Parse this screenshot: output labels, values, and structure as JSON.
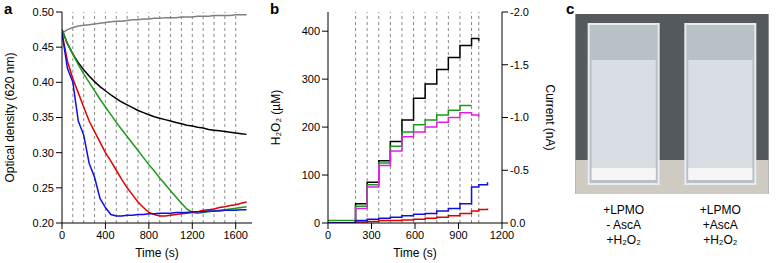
{
  "chart_data": [
    {
      "type": "line",
      "title": "a",
      "x_label": "Time (s)",
      "y_label": "Optical density (620 nm)",
      "x": [
        0,
        50,
        100,
        150,
        200,
        250,
        300,
        350,
        400,
        450,
        500,
        550,
        600,
        650,
        700,
        750,
        800,
        850,
        900,
        950,
        1000,
        1050,
        1100,
        1150,
        1200,
        1250,
        1300,
        1350,
        1400,
        1450,
        1500,
        1550,
        1600,
        1650,
        1700
      ],
      "xlim": [
        0,
        1750
      ],
      "xticks": [
        0,
        400,
        800,
        1200,
        1600
      ],
      "ylim": [
        0.2,
        0.5
      ],
      "yticks": [
        {
          "value": 0.2,
          "label": "0.20"
        },
        0.25,
        {
          "value": 0.3,
          "label": "0.30"
        },
        0.35,
        {
          "value": 0.4,
          "label": "0.40"
        },
        0.45,
        {
          "value": 0.5,
          "label": "0.50"
        }
      ],
      "vlines": [
        100,
        200,
        300,
        400,
        500,
        600,
        700,
        800,
        900,
        1000,
        1100,
        1200,
        1300,
        1400,
        1500,
        1600
      ],
      "series": [
        {
          "color": "#808080",
          "values": [
            0.47,
            0.475,
            0.478,
            0.48,
            0.481,
            0.482,
            0.483,
            0.484,
            0.485,
            0.486,
            0.487,
            0.487,
            0.488,
            0.489,
            0.489,
            0.49,
            0.49,
            0.491,
            0.491,
            0.492,
            0.492,
            0.492,
            0.493,
            0.493,
            0.493,
            0.494,
            0.494,
            0.494,
            0.495,
            0.495,
            0.495,
            0.495,
            0.496,
            0.496,
            0.496
          ]
        },
        {
          "color": "#000000",
          "values": [
            0.475,
            0.455,
            0.44,
            0.428,
            0.418,
            0.409,
            0.401,
            0.394,
            0.388,
            0.382,
            0.377,
            0.372,
            0.368,
            0.364,
            0.36,
            0.357,
            0.354,
            0.351,
            0.349,
            0.347,
            0.345,
            0.343,
            0.341,
            0.339,
            0.338,
            0.336,
            0.335,
            0.333,
            0.332,
            0.331,
            0.33,
            0.329,
            0.328,
            0.327,
            0.326
          ]
        },
        {
          "color": "#1a9a1a",
          "values": [
            0.475,
            0.455,
            0.44,
            0.425,
            0.412,
            0.4,
            0.388,
            0.376,
            0.365,
            0.354,
            0.343,
            0.333,
            0.323,
            0.313,
            0.303,
            0.293,
            0.283,
            0.274,
            0.264,
            0.255,
            0.246,
            0.237,
            0.228,
            0.22,
            0.215,
            0.214,
            0.215,
            0.216,
            0.217,
            0.218,
            0.219,
            0.22,
            0.221,
            0.222,
            0.223
          ]
        },
        {
          "color": "#e00000",
          "values": [
            0.47,
            0.43,
            0.405,
            0.385,
            0.365,
            0.345,
            0.33,
            0.315,
            0.3,
            0.288,
            0.275,
            0.262,
            0.25,
            0.24,
            0.23,
            0.222,
            0.215,
            0.212,
            0.21,
            0.21,
            0.211,
            0.212,
            0.213,
            0.214,
            0.215,
            0.216,
            0.218,
            0.219,
            0.22,
            0.222,
            0.223,
            0.225,
            0.226,
            0.228,
            0.23
          ]
        },
        {
          "color": "#1010e0",
          "values": [
            0.47,
            0.42,
            0.4,
            0.345,
            0.325,
            0.285,
            0.265,
            0.235,
            0.222,
            0.212,
            0.21,
            0.21,
            0.211,
            0.211,
            0.212,
            0.212,
            0.213,
            0.213,
            0.214,
            0.214,
            0.214,
            0.215,
            0.215,
            0.215,
            0.216,
            0.216,
            0.216,
            0.217,
            0.217,
            0.217,
            0.218,
            0.218,
            0.218,
            0.219,
            0.219
          ]
        }
      ]
    },
    {
      "type": "line",
      "title": "b",
      "x_label": "Time (s)",
      "y_label": "H₂O₂ (µM)",
      "y2_label": "Current (nA)",
      "x": [
        0,
        190,
        270,
        350,
        430,
        510,
        590,
        670,
        750,
        830,
        910,
        990,
        1040,
        1100
      ],
      "xlim": [
        0,
        1200
      ],
      "xticks": [
        0,
        300,
        600,
        900,
        1200
      ],
      "ylim": [
        0,
        440
      ],
      "yticks": [
        0,
        100,
        200,
        300,
        400
      ],
      "y2lim": [
        0,
        -2.0
      ],
      "y2ticks": [
        {
          "value": 0,
          "label": "0.0"
        },
        -0.5,
        {
          "value": -1,
          "label": "-1.0"
        },
        -1.5,
        {
          "value": -2,
          "label": "-2.0"
        }
      ],
      "vlines": [
        190,
        270,
        350,
        430,
        510,
        590,
        670,
        750,
        830,
        910,
        990,
        1040
      ],
      "series": [
        {
          "color": "#000000",
          "line_style": "step",
          "values": [
            0,
            40,
            85,
            130,
            170,
            215,
            260,
            290,
            320,
            345,
            370,
            385,
            380,
            null
          ]
        },
        {
          "color": "#1a9a1a",
          "line_style": "step",
          "values": [
            5,
            35,
            80,
            125,
            160,
            190,
            205,
            215,
            225,
            235,
            245,
            245,
            null,
            null
          ]
        },
        {
          "color": "#e020e0",
          "line_style": "step",
          "values": [
            0,
            30,
            75,
            120,
            150,
            180,
            190,
            200,
            210,
            220,
            230,
            225,
            220,
            null
          ]
        },
        {
          "color": "#e00000",
          "line_style": "step",
          "values": [
            0,
            2,
            3,
            5,
            5,
            6,
            8,
            10,
            12,
            15,
            20,
            25,
            28,
            30
          ]
        },
        {
          "color": "#1010e0",
          "line_style": "step",
          "values": [
            0,
            5,
            8,
            10,
            12,
            15,
            18,
            20,
            25,
            30,
            40,
            75,
            80,
            85
          ]
        }
      ]
    }
  ],
  "image": {
    "title": "c",
    "cuvettes": [
      [
        "+LPMO",
        "- AscA",
        "+H₂O₂"
      ],
      [
        "+LPMO",
        "+AscA",
        "+H₂O₂"
      ]
    ]
  }
}
